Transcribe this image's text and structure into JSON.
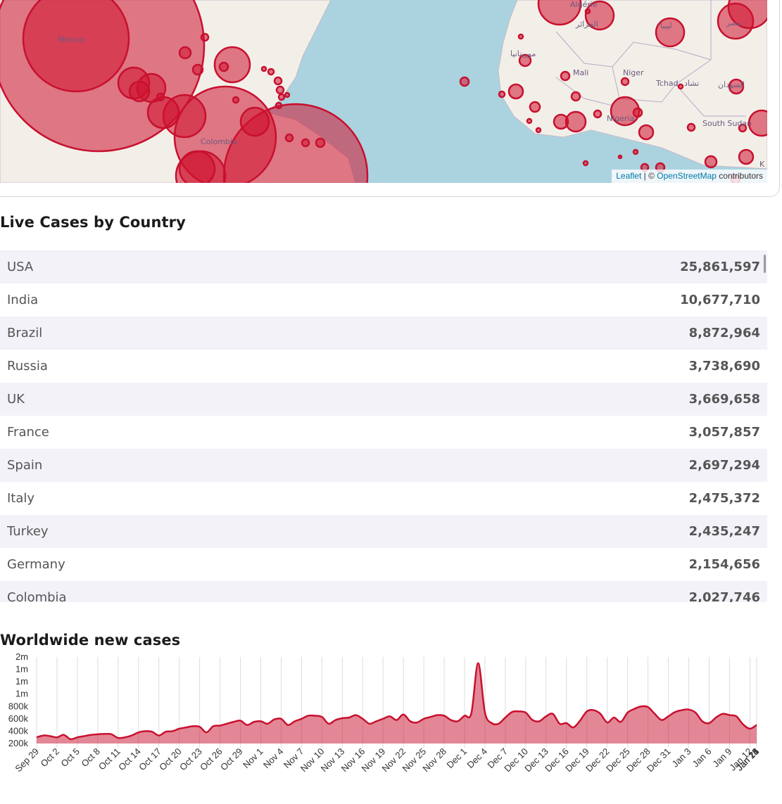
{
  "map": {
    "labels": {
      "mexico": "México",
      "colombia": "Colombia",
      "mali": "Mali",
      "niger": "Niger",
      "tchad": "Tchad",
      "tchad_ar": "تشاد",
      "nigeria": "Nigeria",
      "south_sudan": "South Sudan",
      "sudan_ar": "السودان",
      "mauritania_ar": "موريتانيا",
      "algeria_ar": "الجزائر",
      "algeria": "Algérie",
      "libya_ar": "ليبيا",
      "egypt_ar": "مصر",
      "kenya_partial": "K"
    },
    "attribution": {
      "leaflet": "Leaflet",
      "separator": " | © ",
      "osm": "OpenStreetMap",
      "contributors": " contributors"
    },
    "marker_color": "#d0122f"
  },
  "live_cases": {
    "title": "Live Cases by Country",
    "rows": [
      {
        "country": "USA",
        "cases": "25,861,597"
      },
      {
        "country": "India",
        "cases": "10,677,710"
      },
      {
        "country": "Brazil",
        "cases": "8,872,964"
      },
      {
        "country": "Russia",
        "cases": "3,738,690"
      },
      {
        "country": "UK",
        "cases": "3,669,658"
      },
      {
        "country": "France",
        "cases": "3,057,857"
      },
      {
        "country": "Spain",
        "cases": "2,697,294"
      },
      {
        "country": "Italy",
        "cases": "2,475,372"
      },
      {
        "country": "Turkey",
        "cases": "2,435,247"
      },
      {
        "country": "Germany",
        "cases": "2,154,656"
      },
      {
        "country": "Colombia",
        "cases": "2,027,746"
      }
    ]
  },
  "chart_data": {
    "type": "area",
    "title": "Worldwide new cases",
    "y_tick_labels": [
      "2m",
      "1m",
      "1m",
      "1m",
      "800k",
      "600k",
      "400k",
      "200k"
    ],
    "ylim": [
      200000,
      1600000
    ],
    "grid": true,
    "color": "#c8102e",
    "x_tick_labels": [
      "Sep 29",
      "Oct 2",
      "Oct 5",
      "Oct 8",
      "Oct 11",
      "Oct 14",
      "Oct 17",
      "Oct 20",
      "Oct 23",
      "Oct 26",
      "Oct 29",
      "Nov 1",
      "Nov 4",
      "Nov 7",
      "Nov 10",
      "Nov 13",
      "Nov 16",
      "Nov 19",
      "Nov 22",
      "Nov 25",
      "Nov 28",
      "Dec 1",
      "Dec 4",
      "Dec 7",
      "Dec 10",
      "Dec 13",
      "Dec 16",
      "Dec 19",
      "Dec 22",
      "Dec 25",
      "Dec 28",
      "Dec 31",
      "Jan 3",
      "Jan 6",
      "Jan 9",
      "Jan 12",
      "Jan 15",
      "Jan 18",
      "Jan 21",
      "Jan 24"
    ],
    "start_date": "Sep 29",
    "values": [
      300000,
      330000,
      320000,
      300000,
      340000,
      270000,
      300000,
      320000,
      340000,
      350000,
      355000,
      350000,
      290000,
      300000,
      330000,
      380000,
      400000,
      390000,
      330000,
      390000,
      400000,
      440000,
      460000,
      480000,
      470000,
      380000,
      480000,
      490000,
      520000,
      550000,
      570000,
      500000,
      550000,
      560000,
      520000,
      590000,
      600000,
      500000,
      560000,
      600000,
      650000,
      650000,
      630000,
      520000,
      580000,
      610000,
      620000,
      660000,
      600000,
      520000,
      560000,
      600000,
      640000,
      580000,
      670000,
      560000,
      540000,
      600000,
      630000,
      660000,
      650000,
      580000,
      560000,
      650000,
      690000,
      1500000,
      700000,
      530000,
      520000,
      620000,
      710000,
      720000,
      700000,
      580000,
      560000,
      640000,
      680000,
      520000,
      530000,
      460000,
      570000,
      720000,
      740000,
      680000,
      540000,
      620000,
      550000,
      700000,
      760000,
      800000,
      790000,
      680000,
      580000,
      640000,
      710000,
      740000,
      750000,
      700000,
      560000,
      530000,
      620000,
      680000,
      660000,
      640000,
      510000,
      440000,
      500000
    ]
  }
}
